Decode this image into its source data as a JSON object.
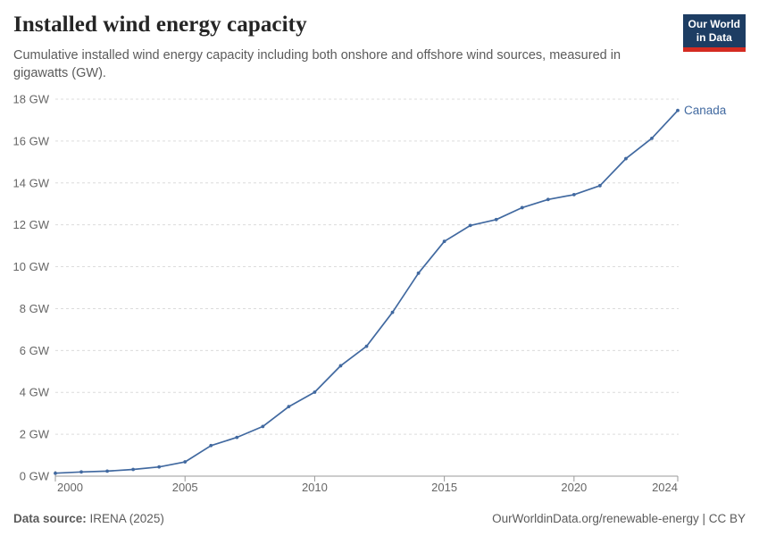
{
  "header": {
    "title": "Installed wind energy capacity",
    "subtitle": "Cumulative installed wind energy capacity including both onshore and offshore wind sources, measured in gigawatts (GW).",
    "logo": {
      "line1": "Our World",
      "line2": "in Data"
    }
  },
  "chart_data": {
    "type": "line",
    "title": "Installed wind energy capacity",
    "x": [
      2000,
      2001,
      2002,
      2003,
      2004,
      2005,
      2006,
      2007,
      2008,
      2009,
      2010,
      2011,
      2012,
      2013,
      2014,
      2015,
      2016,
      2017,
      2018,
      2019,
      2020,
      2021,
      2022,
      2023,
      2024
    ],
    "series": [
      {
        "name": "Canada",
        "color": "#4169a0",
        "values": [
          0.14,
          0.2,
          0.24,
          0.32,
          0.44,
          0.68,
          1.46,
          1.85,
          2.37,
          3.32,
          4.01,
          5.27,
          6.2,
          7.82,
          9.69,
          11.21,
          11.97,
          12.25,
          12.82,
          13.21,
          13.44,
          13.87,
          15.16,
          16.13,
          17.46
        ]
      }
    ],
    "xlabel": "",
    "ylabel": "",
    "xlim": [
      2000,
      2024
    ],
    "ylim": [
      0,
      18
    ],
    "xticks": [
      2000,
      2005,
      2010,
      2015,
      2020,
      2024
    ],
    "yticks": [
      0,
      2,
      4,
      6,
      8,
      10,
      12,
      14,
      16,
      18
    ],
    "ytick_suffix": " GW",
    "grid": "horizontal-dashed",
    "legend": "end-of-line-label",
    "colors": {
      "gridline": "#dcdcdc",
      "axis": "#999999",
      "tick_label": "#666666"
    }
  },
  "footer": {
    "source_label": "Data source:",
    "source_value": " IRENA (2025)",
    "right_text": "OurWorldinData.org/renewable-energy | CC BY"
  }
}
